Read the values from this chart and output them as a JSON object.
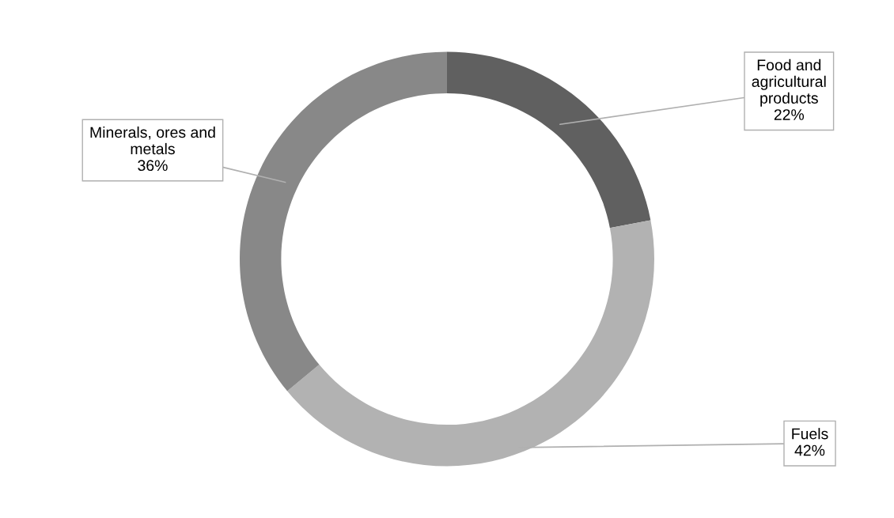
{
  "chart_data": {
    "type": "donut",
    "categories": [
      "Food and\nagricultural\nproducts",
      "Fuels",
      "Minerals, ores and\nmetals"
    ],
    "values": [
      22,
      42,
      36
    ],
    "colors": [
      "#606060",
      "#b2b2b2",
      "#888888"
    ],
    "value_labels": [
      "22%",
      "42%",
      "36%"
    ]
  }
}
